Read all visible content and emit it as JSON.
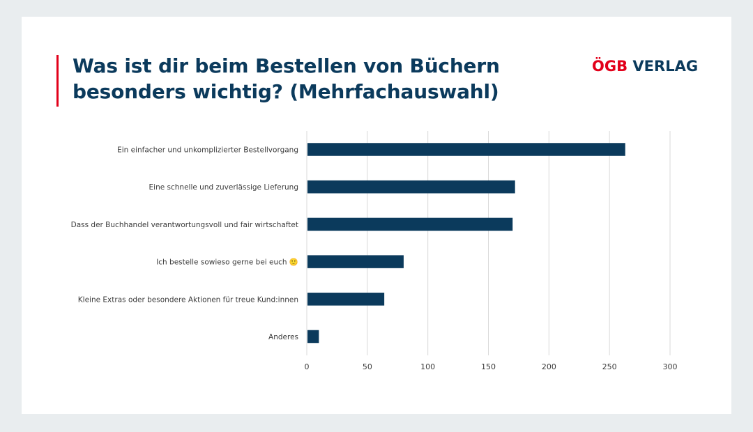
{
  "header": {
    "title_line1": "Was ist dir beim Bestellen von Büchern",
    "title_line2": "besonders wichtig? (Mehrfachauswahl)"
  },
  "logo": {
    "part1": "ÖGB",
    "part2": " VERLAG"
  },
  "colors": {
    "accent": "#e2001a",
    "bar": "#0b3a5c",
    "title": "#0b3a5c",
    "grid": "#d9d9d9",
    "background": "#e9edef"
  },
  "chart_data": {
    "type": "bar",
    "orientation": "horizontal",
    "title": "Was ist dir beim Bestellen von Büchern besonders wichtig? (Mehrfachauswahl)",
    "categories": [
      "Ein einfacher und unkomplizierter Bestellvorgang",
      "Eine schnelle und zuverlässige Lieferung",
      "Dass der Buchhandel verantwortungsvoll und fair wirtschaftet",
      "Ich bestelle sowieso gerne bei euch 🙂",
      "Kleine Extras oder besondere Aktionen für treue Kund:innen",
      "Anderes"
    ],
    "values": [
      263,
      172,
      170,
      80,
      64,
      10
    ],
    "xlim": [
      0,
      300
    ],
    "xticks": [
      0,
      50,
      100,
      150,
      200,
      250,
      300
    ],
    "xlabel": "",
    "ylabel": "",
    "grid": true,
    "legend": "none"
  }
}
